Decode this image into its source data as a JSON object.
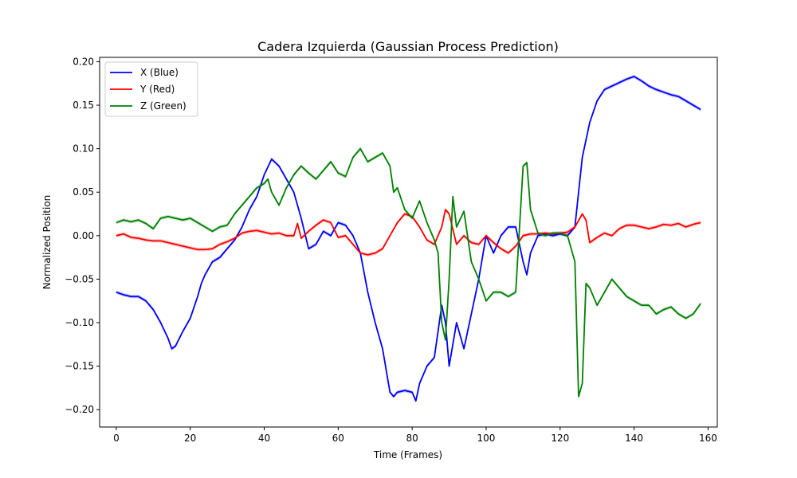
{
  "chart_data": {
    "type": "line",
    "title": "Cadera Izquierda (Gaussian Process Prediction)",
    "xlabel": "Time (Frames)",
    "ylabel": "Normalized Position",
    "xlim": [
      -4.5,
      162.5
    ],
    "ylim": [
      -0.22,
      0.205
    ],
    "xticks": [
      0,
      20,
      40,
      60,
      80,
      100,
      120,
      140,
      160
    ],
    "yticks": [
      0.2,
      0.15,
      0.1,
      0.05,
      0.0,
      -0.05,
      -0.1,
      -0.15,
      -0.2
    ],
    "ytick_labels": [
      "0.20",
      "0.15",
      "0.10",
      "0.05",
      "0.00",
      "−0.05",
      "−0.10",
      "−0.15",
      "−0.20"
    ],
    "grid": false,
    "legend_position": "top-left",
    "series": [
      {
        "name": "X (Blue)",
        "color": "#0000ff",
        "x": [
          0,
          2,
          4,
          6,
          8,
          10,
          12,
          14,
          15,
          16,
          18,
          20,
          22,
          23,
          24,
          26,
          28,
          30,
          32,
          34,
          36,
          38,
          40,
          42,
          44,
          46,
          48,
          50,
          52,
          54,
          56,
          58,
          60,
          62,
          64,
          66,
          68,
          70,
          72,
          74,
          75,
          76,
          78,
          80,
          81,
          82,
          84,
          86,
          88,
          89,
          90,
          92,
          94,
          96,
          98,
          100,
          102,
          104,
          106,
          108,
          110,
          111,
          112,
          114,
          116,
          118,
          120,
          122,
          124,
          126,
          127,
          128,
          130,
          132,
          134,
          136,
          138,
          140,
          142,
          144,
          146,
          148,
          150,
          152,
          154,
          156,
          158
        ],
        "values": [
          -0.065,
          -0.068,
          -0.07,
          -0.07,
          -0.075,
          -0.085,
          -0.1,
          -0.118,
          -0.13,
          -0.127,
          -0.11,
          -0.095,
          -0.07,
          -0.055,
          -0.045,
          -0.03,
          -0.025,
          -0.015,
          -0.005,
          0.01,
          0.03,
          0.045,
          0.07,
          0.088,
          0.08,
          0.065,
          0.05,
          0.02,
          -0.015,
          -0.01,
          0.005,
          0.0,
          0.015,
          0.012,
          0.0,
          -0.02,
          -0.065,
          -0.1,
          -0.13,
          -0.18,
          -0.185,
          -0.18,
          -0.178,
          -0.18,
          -0.19,
          -0.17,
          -0.15,
          -0.14,
          -0.08,
          -0.1,
          -0.15,
          -0.1,
          -0.13,
          -0.09,
          -0.05,
          0.0,
          -0.02,
          0.0,
          0.01,
          0.01,
          -0.03,
          -0.045,
          -0.02,
          0.0,
          0.002,
          0.0,
          0.002,
          0.0,
          0.01,
          0.09,
          0.11,
          0.13,
          0.155,
          0.168,
          0.172,
          0.176,
          0.18,
          0.183,
          0.178,
          0.172,
          0.168,
          0.165,
          0.162,
          0.16,
          0.155,
          0.15,
          0.145
        ]
      },
      {
        "name": "Y (Red)",
        "color": "#ff0000",
        "x": [
          0,
          2,
          4,
          6,
          8,
          10,
          12,
          14,
          16,
          18,
          20,
          22,
          24,
          26,
          28,
          30,
          32,
          34,
          36,
          38,
          40,
          42,
          44,
          46,
          48,
          49,
          50,
          52,
          54,
          56,
          58,
          60,
          62,
          64,
          66,
          68,
          70,
          72,
          74,
          76,
          78,
          80,
          82,
          84,
          86,
          88,
          89,
          90,
          92,
          94,
          96,
          98,
          100,
          102,
          104,
          106,
          108,
          110,
          112,
          114,
          116,
          118,
          120,
          122,
          124,
          126,
          127,
          128,
          130,
          132,
          134,
          136,
          138,
          140,
          142,
          144,
          146,
          148,
          150,
          152,
          154,
          156,
          158
        ],
        "values": [
          0.0,
          0.002,
          -0.002,
          -0.003,
          -0.005,
          -0.006,
          -0.006,
          -0.008,
          -0.01,
          -0.012,
          -0.014,
          -0.016,
          -0.016,
          -0.015,
          -0.01,
          -0.007,
          -0.003,
          0.003,
          0.005,
          0.006,
          0.004,
          0.002,
          0.003,
          0.0,
          0.0,
          0.014,
          -0.003,
          0.005,
          0.012,
          0.018,
          0.015,
          -0.002,
          0.0,
          -0.01,
          -0.02,
          -0.022,
          -0.02,
          -0.015,
          0.0,
          0.015,
          0.025,
          0.022,
          0.01,
          -0.005,
          -0.01,
          0.01,
          0.03,
          0.025,
          -0.01,
          0.0,
          -0.008,
          -0.01,
          0.0,
          -0.008,
          -0.015,
          -0.02,
          -0.012,
          0.0,
          0.002,
          0.002,
          0.003,
          0.002,
          0.003,
          0.004,
          0.01,
          0.025,
          0.018,
          -0.008,
          -0.002,
          0.003,
          0.0,
          0.008,
          0.012,
          0.012,
          0.01,
          0.008,
          0.01,
          0.013,
          0.012,
          0.014,
          0.01,
          0.013,
          0.015
        ]
      },
      {
        "name": "Z (Green)",
        "color": "#008000",
        "x": [
          0,
          2,
          4,
          6,
          8,
          10,
          12,
          14,
          16,
          18,
          20,
          22,
          24,
          26,
          28,
          30,
          32,
          34,
          36,
          38,
          40,
          41,
          42,
          44,
          46,
          48,
          50,
          52,
          54,
          56,
          58,
          60,
          62,
          64,
          66,
          68,
          70,
          72,
          74,
          75,
          76,
          78,
          80,
          82,
          84,
          86,
          87,
          88,
          89,
          90,
          91,
          92,
          94,
          96,
          98,
          100,
          102,
          104,
          106,
          108,
          110,
          111,
          112,
          114,
          116,
          118,
          120,
          122,
          124,
          125,
          126,
          127,
          128,
          130,
          132,
          134,
          136,
          138,
          140,
          142,
          144,
          146,
          148,
          150,
          152,
          154,
          156,
          158
        ],
        "values": [
          0.015,
          0.018,
          0.016,
          0.018,
          0.014,
          0.008,
          0.02,
          0.022,
          0.02,
          0.018,
          0.02,
          0.015,
          0.01,
          0.005,
          0.01,
          0.012,
          0.025,
          0.035,
          0.045,
          0.055,
          0.06,
          0.065,
          0.05,
          0.035,
          0.055,
          0.07,
          0.08,
          0.072,
          0.065,
          0.075,
          0.085,
          0.072,
          0.068,
          0.09,
          0.1,
          0.085,
          0.09,
          0.095,
          0.08,
          0.05,
          0.055,
          0.03,
          0.02,
          0.04,
          0.015,
          -0.005,
          -0.02,
          -0.1,
          -0.12,
          -0.05,
          0.045,
          0.01,
          0.028,
          -0.03,
          -0.05,
          -0.075,
          -0.065,
          -0.065,
          -0.07,
          -0.065,
          0.08,
          0.084,
          0.03,
          0.003,
          0.0,
          0.003,
          0.003,
          0.0,
          -0.03,
          -0.185,
          -0.17,
          -0.055,
          -0.06,
          -0.08,
          -0.065,
          -0.05,
          -0.06,
          -0.07,
          -0.075,
          -0.08,
          -0.08,
          -0.09,
          -0.085,
          -0.082,
          -0.09,
          -0.095,
          -0.09,
          -0.078
        ]
      }
    ]
  }
}
